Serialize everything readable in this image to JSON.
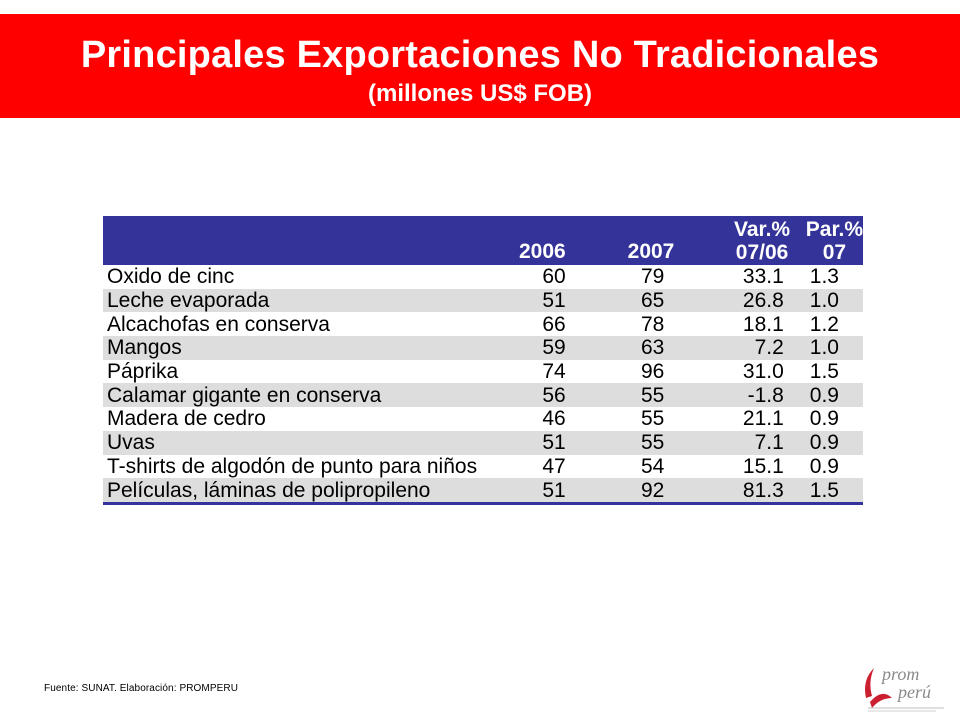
{
  "header": {
    "title": "Principales Exportaciones No Tradicionales",
    "subtitle": "(millones US$ FOB)"
  },
  "table": {
    "columns": {
      "label": "",
      "y2006": "2006",
      "y2007": "2007",
      "var_line1": "Var.%",
      "var_line2": "07/06",
      "par_line1": "Par.%",
      "par_line2": "07"
    },
    "rows": [
      {
        "name": "Oxido de cinc",
        "y2006": "60",
        "y2007": "79",
        "var": "33.1",
        "par": "1.3"
      },
      {
        "name": "Leche evaporada",
        "y2006": "51",
        "y2007": "65",
        "var": "26.8",
        "par": "1.0"
      },
      {
        "name": "Alcachofas en conserva",
        "y2006": "66",
        "y2007": "78",
        "var": "18.1",
        "par": "1.2"
      },
      {
        "name": "Mangos",
        "y2006": "59",
        "y2007": "63",
        "var": "7.2",
        "par": "1.0"
      },
      {
        "name": "Páprika",
        "y2006": "74",
        "y2007": "96",
        "var": "31.0",
        "par": "1.5"
      },
      {
        "name": "Calamar gigante en conserva",
        "y2006": "56",
        "y2007": "55",
        "var": "-1.8",
        "par": "0.9"
      },
      {
        "name": "Madera de cedro",
        "y2006": "46",
        "y2007": "55",
        "var": "21.1",
        "par": "0.9"
      },
      {
        "name": "Uvas",
        "y2006": "51",
        "y2007": "55",
        "var": "7.1",
        "par": "0.9"
      },
      {
        "name": "T-shirts de algodón de punto para niños",
        "y2006": "47",
        "y2007": "54",
        "var": "15.1",
        "par": "0.9"
      },
      {
        "name": "Películas, láminas de polipropileno",
        "y2006": "51",
        "y2007": "92",
        "var": "81.3",
        "par": "1.5"
      }
    ]
  },
  "footer": {
    "source": "Fuente: SUNAT.  Elaboración: PROMPERU"
  },
  "logo": {
    "line1": "prom",
    "line2": "perú",
    "colors": {
      "red": "#cc1f2f",
      "gray": "#8a8a8a"
    }
  }
}
